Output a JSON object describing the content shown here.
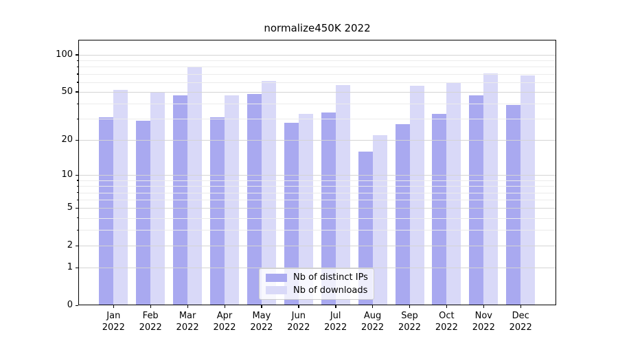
{
  "chart_data": {
    "type": "bar",
    "title": "normalize450K 2022",
    "categories": [
      "Jan\n2022",
      "Feb\n2022",
      "Mar\n2022",
      "Apr\n2022",
      "May\n2022",
      "Jun\n2022",
      "Jul\n2022",
      "Aug\n2022",
      "Sep\n2022",
      "Oct\n2022",
      "Nov\n2022",
      "Dec\n2022"
    ],
    "series": [
      {
        "name": "Nb of distinct IPs",
        "color": "#a9a9f0",
        "values": [
          31,
          29,
          47,
          31,
          48,
          28,
          34,
          16,
          27,
          33,
          47,
          39
        ]
      },
      {
        "name": "Nb of downloads",
        "color": "#d9d9f8",
        "values": [
          52,
          50,
          80,
          47,
          61,
          33,
          57,
          22,
          56,
          59,
          71,
          68
        ]
      }
    ],
    "xlabel": "",
    "ylabel": "",
    "y_axis": {
      "scale": "log10(1+v)",
      "tick_values": [
        0,
        1,
        2,
        5,
        10,
        20,
        50,
        100
      ],
      "tick_labels": [
        "0",
        "1",
        "2",
        "5",
        "10",
        "20",
        "50",
        "100"
      ],
      "minor_gridline_values": [
        3,
        4,
        6,
        7,
        8,
        9,
        30,
        40,
        60,
        70,
        80,
        90
      ],
      "range": [
        0,
        131
      ]
    },
    "grid": true,
    "legend_position": "lower center",
    "colors": {
      "major_grid": "#d4d4d4",
      "minor_grid": "#ebebeb",
      "spine": "#000000",
      "text": "#000000",
      "background": "#ffffff"
    }
  }
}
